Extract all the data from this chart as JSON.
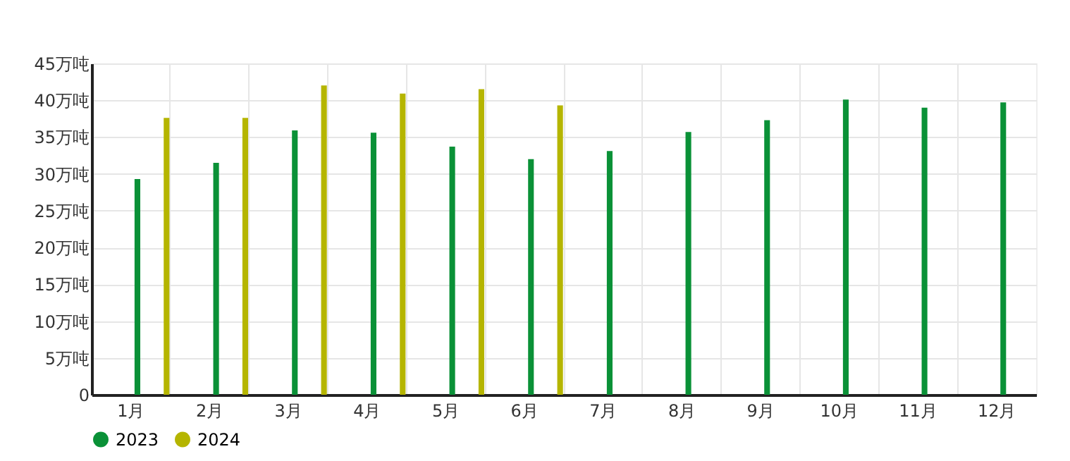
{
  "chart_data": {
    "type": "bar",
    "categories": [
      "1月",
      "2月",
      "3月",
      "4月",
      "5月",
      "6月",
      "7月",
      "8月",
      "9月",
      "10月",
      "11月",
      "12月"
    ],
    "series": [
      {
        "name": "2023",
        "color": "#0a9137",
        "values": [
          29.3,
          31.5,
          35.9,
          35.6,
          33.7,
          32.0,
          33.1,
          35.7,
          37.3,
          40.1,
          39.0,
          39.7
        ]
      },
      {
        "name": "2024",
        "color": "#b5b500",
        "values": [
          37.6,
          37.6,
          42.0,
          40.9,
          41.5,
          39.3,
          null,
          null,
          null,
          null,
          null,
          null
        ]
      }
    ],
    "ylim": [
      0,
      45
    ],
    "yticks": [
      0,
      {
        "value": 5,
        "label": "5万吨"
      },
      {
        "value": 10,
        "label": "10万吨"
      },
      {
        "value": 15,
        "label": "15万吨"
      },
      {
        "value": 20,
        "label": "20万吨"
      },
      {
        "value": 25,
        "label": "25万吨"
      },
      {
        "value": 30,
        "label": "30万吨"
      },
      {
        "value": 35,
        "label": "35万吨"
      },
      {
        "value": 40,
        "label": "40万吨"
      },
      {
        "value": 45,
        "label": "45万吨"
      }
    ],
    "grid": true,
    "legend": "bottom left"
  }
}
